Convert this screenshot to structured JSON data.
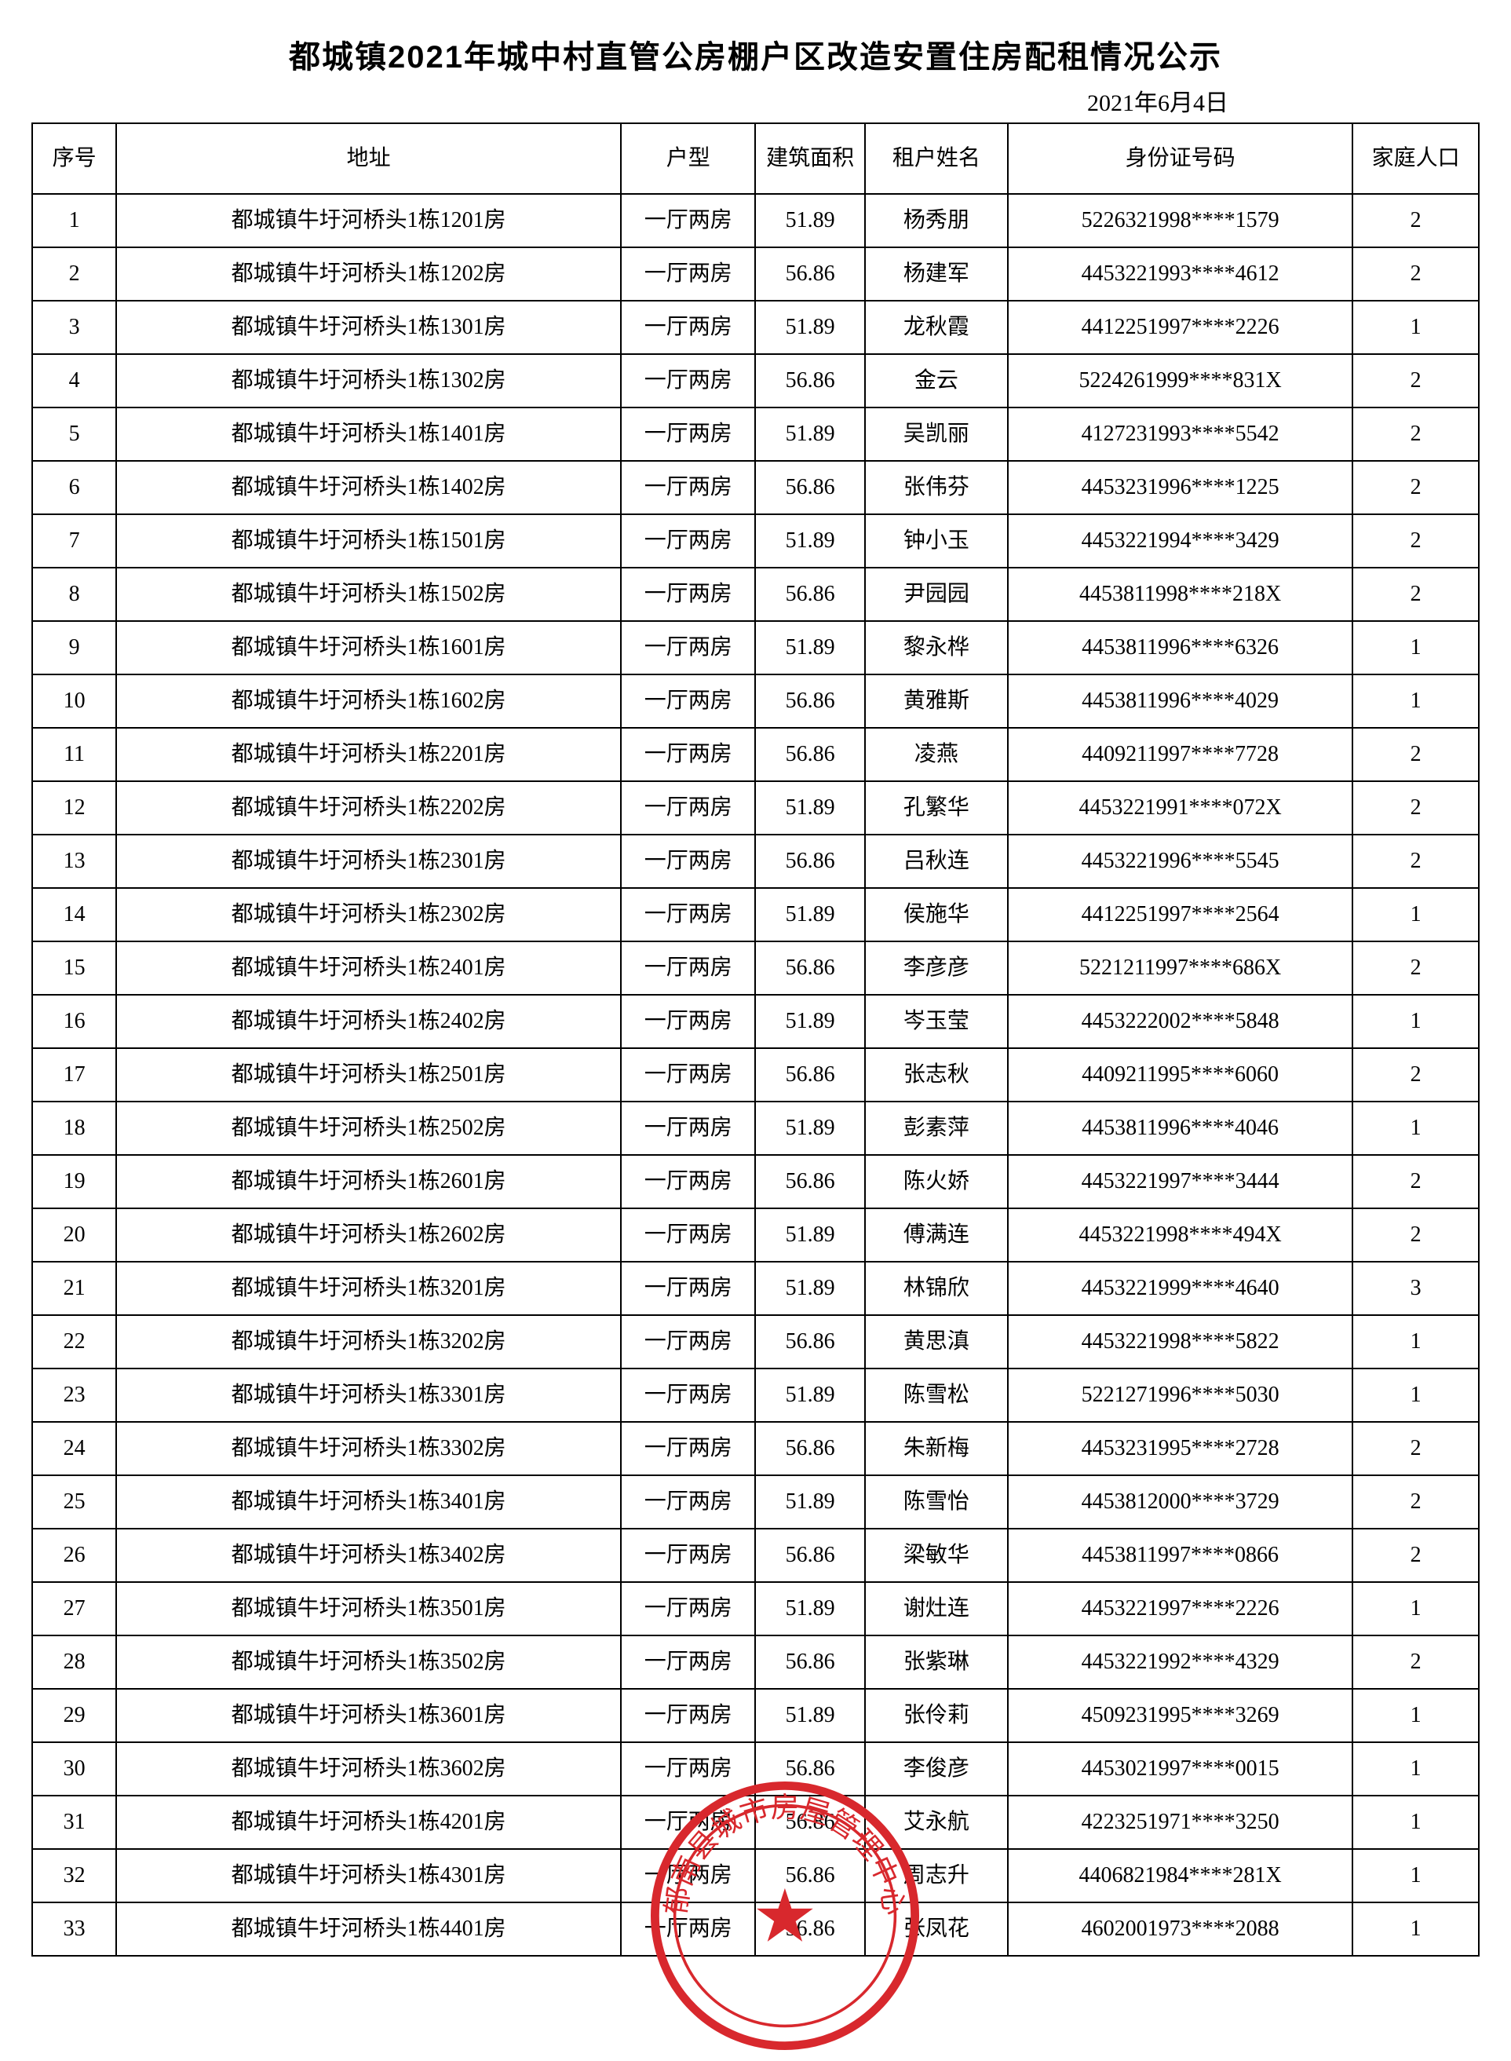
{
  "title": "都城镇2021年城中村直管公房棚户区改造安置住房配租情况公示",
  "date": "2021年6月4日",
  "columns": {
    "seq": "序号",
    "addr": "地址",
    "type": "户型",
    "area": "建筑面积",
    "name": "租户姓名",
    "id": "身份证号码",
    "fam": "家庭人口"
  },
  "colors": {
    "text": "#000000",
    "border": "#000000",
    "background": "#ffffff",
    "stamp": "#d8282d"
  },
  "stamp_text": {
    "outer": "郁南县城市房屋管理中心",
    "inner": "★"
  },
  "rows": [
    {
      "seq": "1",
      "addr": "都城镇牛圩河桥头1栋1201房",
      "type": "一厅两房",
      "area": "51.89",
      "name": "杨秀朋",
      "id": "5226321998****1579",
      "fam": "2"
    },
    {
      "seq": "2",
      "addr": "都城镇牛圩河桥头1栋1202房",
      "type": "一厅两房",
      "area": "56.86",
      "name": "杨建军",
      "id": "4453221993****4612",
      "fam": "2"
    },
    {
      "seq": "3",
      "addr": "都城镇牛圩河桥头1栋1301房",
      "type": "一厅两房",
      "area": "51.89",
      "name": "龙秋霞",
      "id": "4412251997****2226",
      "fam": "1"
    },
    {
      "seq": "4",
      "addr": "都城镇牛圩河桥头1栋1302房",
      "type": "一厅两房",
      "area": "56.86",
      "name": "金云",
      "id": "5224261999****831X",
      "fam": "2"
    },
    {
      "seq": "5",
      "addr": "都城镇牛圩河桥头1栋1401房",
      "type": "一厅两房",
      "area": "51.89",
      "name": "吴凯丽",
      "id": "4127231993****5542",
      "fam": "2"
    },
    {
      "seq": "6",
      "addr": "都城镇牛圩河桥头1栋1402房",
      "type": "一厅两房",
      "area": "56.86",
      "name": "张伟芬",
      "id": "4453231996****1225",
      "fam": "2"
    },
    {
      "seq": "7",
      "addr": "都城镇牛圩河桥头1栋1501房",
      "type": "一厅两房",
      "area": "51.89",
      "name": "钟小玉",
      "id": "4453221994****3429",
      "fam": "2"
    },
    {
      "seq": "8",
      "addr": "都城镇牛圩河桥头1栋1502房",
      "type": "一厅两房",
      "area": "56.86",
      "name": "尹园园",
      "id": "4453811998****218X",
      "fam": "2"
    },
    {
      "seq": "9",
      "addr": "都城镇牛圩河桥头1栋1601房",
      "type": "一厅两房",
      "area": "51.89",
      "name": "黎永桦",
      "id": "4453811996****6326",
      "fam": "1"
    },
    {
      "seq": "10",
      "addr": "都城镇牛圩河桥头1栋1602房",
      "type": "一厅两房",
      "area": "56.86",
      "name": "黄雅斯",
      "id": "4453811996****4029",
      "fam": "1"
    },
    {
      "seq": "11",
      "addr": "都城镇牛圩河桥头1栋2201房",
      "type": "一厅两房",
      "area": "56.86",
      "name": "凌燕",
      "id": "4409211997****7728",
      "fam": "2"
    },
    {
      "seq": "12",
      "addr": "都城镇牛圩河桥头1栋2202房",
      "type": "一厅两房",
      "area": "51.89",
      "name": "孔繁华",
      "id": "4453221991****072X",
      "fam": "2"
    },
    {
      "seq": "13",
      "addr": "都城镇牛圩河桥头1栋2301房",
      "type": "一厅两房",
      "area": "56.86",
      "name": "吕秋连",
      "id": "4453221996****5545",
      "fam": "2"
    },
    {
      "seq": "14",
      "addr": "都城镇牛圩河桥头1栋2302房",
      "type": "一厅两房",
      "area": "51.89",
      "name": "侯施华",
      "id": "4412251997****2564",
      "fam": "1"
    },
    {
      "seq": "15",
      "addr": "都城镇牛圩河桥头1栋2401房",
      "type": "一厅两房",
      "area": "56.86",
      "name": "李彦彦",
      "id": "5221211997****686X",
      "fam": "2"
    },
    {
      "seq": "16",
      "addr": "都城镇牛圩河桥头1栋2402房",
      "type": "一厅两房",
      "area": "51.89",
      "name": "岑玉莹",
      "id": "4453222002****5848",
      "fam": "1"
    },
    {
      "seq": "17",
      "addr": "都城镇牛圩河桥头1栋2501房",
      "type": "一厅两房",
      "area": "56.86",
      "name": "张志秋",
      "id": "4409211995****6060",
      "fam": "2"
    },
    {
      "seq": "18",
      "addr": "都城镇牛圩河桥头1栋2502房",
      "type": "一厅两房",
      "area": "51.89",
      "name": "彭素萍",
      "id": "4453811996****4046",
      "fam": "1"
    },
    {
      "seq": "19",
      "addr": "都城镇牛圩河桥头1栋2601房",
      "type": "一厅两房",
      "area": "56.86",
      "name": "陈火娇",
      "id": "4453221997****3444",
      "fam": "2"
    },
    {
      "seq": "20",
      "addr": "都城镇牛圩河桥头1栋2602房",
      "type": "一厅两房",
      "area": "51.89",
      "name": "傅满连",
      "id": "4453221998****494X",
      "fam": "2"
    },
    {
      "seq": "21",
      "addr": "都城镇牛圩河桥头1栋3201房",
      "type": "一厅两房",
      "area": "51.89",
      "name": "林锦欣",
      "id": "4453221999****4640",
      "fam": "3"
    },
    {
      "seq": "22",
      "addr": "都城镇牛圩河桥头1栋3202房",
      "type": "一厅两房",
      "area": "56.86",
      "name": "黄思滇",
      "id": "4453221998****5822",
      "fam": "1"
    },
    {
      "seq": "23",
      "addr": "都城镇牛圩河桥头1栋3301房",
      "type": "一厅两房",
      "area": "51.89",
      "name": "陈雪松",
      "id": "5221271996****5030",
      "fam": "1"
    },
    {
      "seq": "24",
      "addr": "都城镇牛圩河桥头1栋3302房",
      "type": "一厅两房",
      "area": "56.86",
      "name": "朱新梅",
      "id": "4453231995****2728",
      "fam": "2"
    },
    {
      "seq": "25",
      "addr": "都城镇牛圩河桥头1栋3401房",
      "type": "一厅两房",
      "area": "51.89",
      "name": "陈雪怡",
      "id": "4453812000****3729",
      "fam": "2"
    },
    {
      "seq": "26",
      "addr": "都城镇牛圩河桥头1栋3402房",
      "type": "一厅两房",
      "area": "56.86",
      "name": "梁敏华",
      "id": "4453811997****0866",
      "fam": "2"
    },
    {
      "seq": "27",
      "addr": "都城镇牛圩河桥头1栋3501房",
      "type": "一厅两房",
      "area": "51.89",
      "name": "谢灶连",
      "id": "4453221997****2226",
      "fam": "1"
    },
    {
      "seq": "28",
      "addr": "都城镇牛圩河桥头1栋3502房",
      "type": "一厅两房",
      "area": "56.86",
      "name": "张紫琳",
      "id": "4453221992****4329",
      "fam": "2"
    },
    {
      "seq": "29",
      "addr": "都城镇牛圩河桥头1栋3601房",
      "type": "一厅两房",
      "area": "51.89",
      "name": "张伶莉",
      "id": "4509231995****3269",
      "fam": "1"
    },
    {
      "seq": "30",
      "addr": "都城镇牛圩河桥头1栋3602房",
      "type": "一厅两房",
      "area": "56.86",
      "name": "李俊彦",
      "id": "4453021997****0015",
      "fam": "1"
    },
    {
      "seq": "31",
      "addr": "都城镇牛圩河桥头1栋4201房",
      "type": "一厅两房",
      "area": "56.86",
      "name": "艾永航",
      "id": "4223251971****3250",
      "fam": "1"
    },
    {
      "seq": "32",
      "addr": "都城镇牛圩河桥头1栋4301房",
      "type": "一厅两房",
      "area": "56.86",
      "name": "周志升",
      "id": "4406821984****281X",
      "fam": "1"
    },
    {
      "seq": "33",
      "addr": "都城镇牛圩河桥头1栋4401房",
      "type": "一厅两房",
      "area": "56.86",
      "name": "张凤花",
      "id": "4602001973****2088",
      "fam": "1"
    }
  ]
}
